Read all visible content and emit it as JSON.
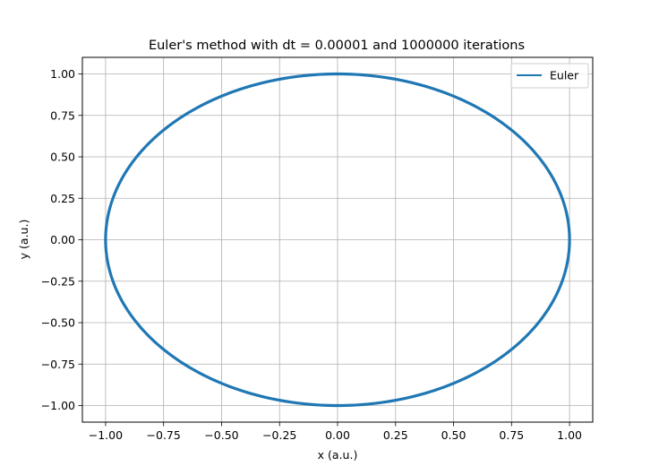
{
  "chart_data": {
    "type": "line",
    "title": "Euler's method with dt = 0.00001 and 1000000 iterations",
    "xlabel": "x (a.u.)",
    "ylabel": "y (a.u.)",
    "xlim": [
      -1.1,
      1.1
    ],
    "ylim": [
      -1.1,
      1.1
    ],
    "x_ticks": [
      -1.0,
      -0.75,
      -0.5,
      -0.25,
      0.0,
      0.25,
      0.5,
      0.75,
      1.0
    ],
    "x_tick_labels": [
      "−1.00",
      "−0.75",
      "−0.50",
      "−0.25",
      "0.00",
      "0.25",
      "0.50",
      "0.75",
      "1.00"
    ],
    "y_ticks": [
      -1.0,
      -0.75,
      -0.5,
      -0.25,
      0.0,
      0.25,
      0.5,
      0.75,
      1.0
    ],
    "y_tick_labels": [
      "−1.00",
      "−0.75",
      "−0.50",
      "−0.25",
      "0.00",
      "0.25",
      "0.50",
      "0.75",
      "1.00"
    ],
    "grid": true,
    "legend_position": "top-right",
    "series": [
      {
        "name": "Euler",
        "color": "#1f77b4",
        "shape": "closed orbit",
        "x": [
          1.0,
          0.966,
          0.866,
          0.707,
          0.5,
          0.259,
          0.0,
          -0.259,
          -0.5,
          -0.707,
          -0.866,
          -0.966,
          -1.0,
          -0.966,
          -0.866,
          -0.707,
          -0.5,
          -0.259,
          0.0,
          0.259,
          0.5,
          0.707,
          0.866,
          0.966,
          1.0
        ],
        "y": [
          0.0,
          0.259,
          0.5,
          0.707,
          0.866,
          0.966,
          1.0,
          0.966,
          0.866,
          0.707,
          0.5,
          0.259,
          0.0,
          -0.259,
          -0.5,
          -0.707,
          -0.866,
          -0.966,
          -1.0,
          -0.966,
          -0.866,
          -0.707,
          -0.5,
          -0.259,
          0.0
        ]
      }
    ]
  }
}
